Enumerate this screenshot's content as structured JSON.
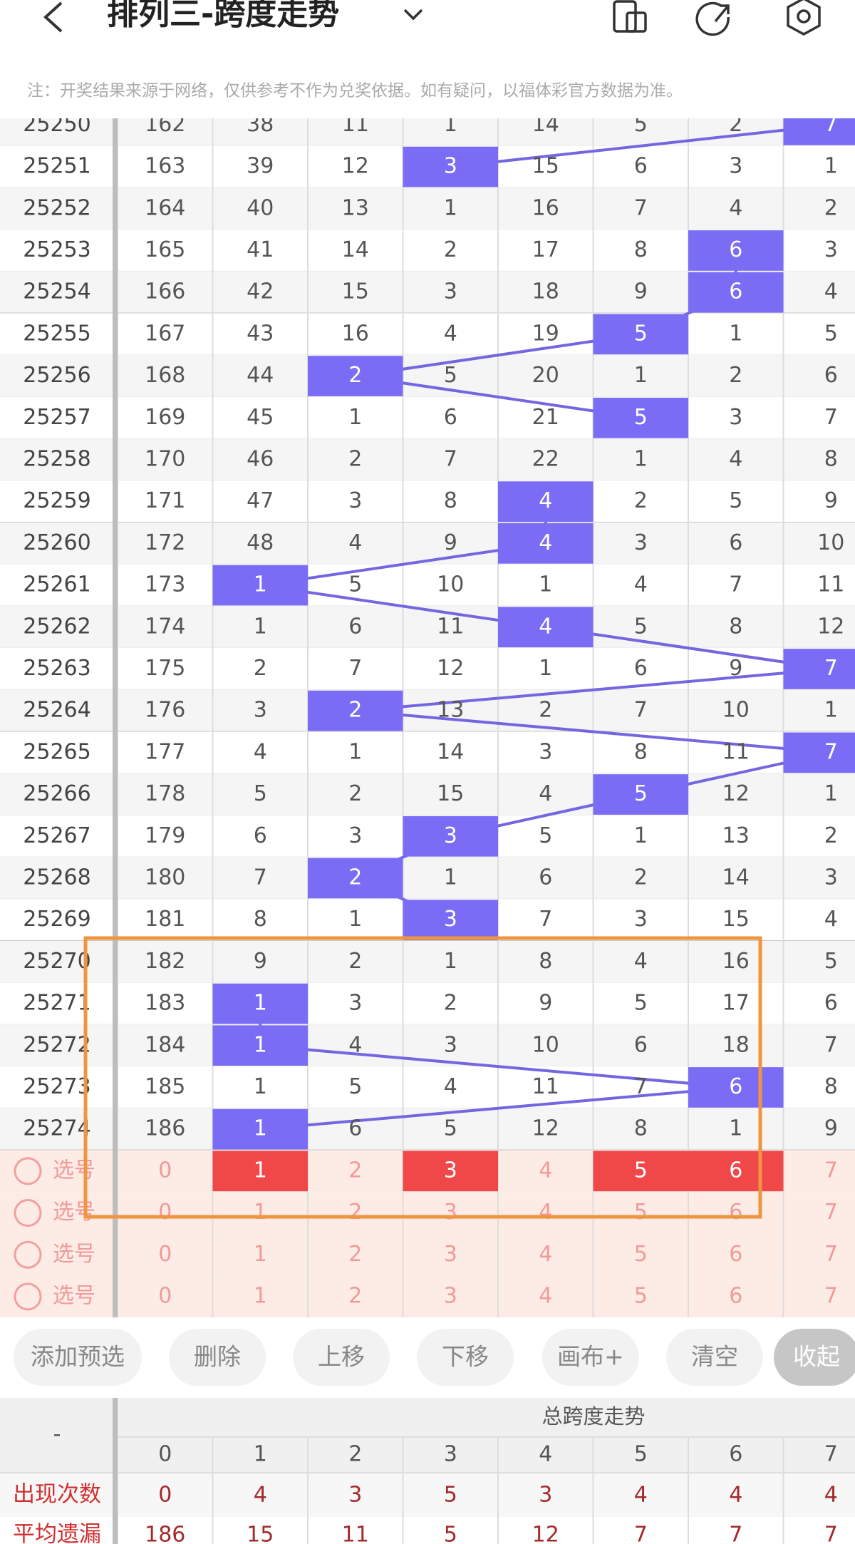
{
  "header": {
    "title": "排列三-跨度走势"
  },
  "note": "注：开奖结果来源于网络，仅供参考不作为兑奖依据。如有疑问，以福体彩官方数据为准。",
  "table": {
    "rows": [
      {
        "period": "25250",
        "cells": [
          162,
          38,
          11,
          1,
          14,
          5,
          2,
          7
        ],
        "highlight": 7
      },
      {
        "period": "25251",
        "cells": [
          163,
          39,
          12,
          3,
          15,
          6,
          3,
          1
        ],
        "highlight": 3
      },
      {
        "period": "25252",
        "cells": [
          164,
          40,
          13,
          1,
          16,
          7,
          4,
          2
        ],
        "highlight": null
      },
      {
        "period": "25253",
        "cells": [
          165,
          41,
          14,
          2,
          17,
          8,
          6,
          3
        ],
        "highlight": 6
      },
      {
        "period": "25254",
        "cells": [
          166,
          42,
          15,
          3,
          18,
          9,
          6,
          4
        ],
        "highlight": 6
      },
      {
        "period": "25255",
        "cells": [
          167,
          43,
          16,
          4,
          19,
          5,
          1,
          5
        ],
        "highlight": 5
      },
      {
        "period": "25256",
        "cells": [
          168,
          44,
          2,
          5,
          20,
          1,
          2,
          6
        ],
        "highlight": 2
      },
      {
        "period": "25257",
        "cells": [
          169,
          45,
          1,
          6,
          21,
          5,
          3,
          7
        ],
        "highlight": 5
      },
      {
        "period": "25258",
        "cells": [
          170,
          46,
          2,
          7,
          22,
          1,
          4,
          8
        ],
        "highlight": null
      },
      {
        "period": "25259",
        "cells": [
          171,
          47,
          3,
          8,
          4,
          2,
          5,
          9
        ],
        "highlight": 4
      },
      {
        "period": "25260",
        "cells": [
          172,
          48,
          4,
          9,
          4,
          3,
          6,
          10
        ],
        "highlight": 4
      },
      {
        "period": "25261",
        "cells": [
          173,
          1,
          5,
          10,
          1,
          4,
          7,
          11
        ],
        "highlight": 1
      },
      {
        "period": "25262",
        "cells": [
          174,
          1,
          6,
          11,
          4,
          5,
          8,
          12
        ],
        "highlight": 4
      },
      {
        "period": "25263",
        "cells": [
          175,
          2,
          7,
          12,
          1,
          6,
          9,
          7
        ],
        "highlight": 7
      },
      {
        "period": "25264",
        "cells": [
          176,
          3,
          2,
          13,
          2,
          7,
          10,
          1
        ],
        "highlight": 2
      },
      {
        "period": "25265",
        "cells": [
          177,
          4,
          1,
          14,
          3,
          8,
          11,
          7
        ],
        "highlight": 7
      },
      {
        "period": "25266",
        "cells": [
          178,
          5,
          2,
          15,
          4,
          5,
          12,
          1
        ],
        "highlight": 5
      },
      {
        "period": "25267",
        "cells": [
          179,
          6,
          3,
          3,
          5,
          1,
          13,
          2
        ],
        "highlight": 3
      },
      {
        "period": "25268",
        "cells": [
          180,
          7,
          2,
          1,
          6,
          2,
          14,
          3
        ],
        "highlight": 2
      },
      {
        "period": "25269",
        "cells": [
          181,
          8,
          1,
          3,
          7,
          3,
          15,
          4
        ],
        "highlight": 3
      },
      {
        "period": "25270",
        "cells": [
          182,
          9,
          2,
          1,
          8,
          4,
          16,
          5
        ],
        "highlight": null
      },
      {
        "period": "25271",
        "cells": [
          183,
          1,
          3,
          2,
          9,
          5,
          17,
          6
        ],
        "highlight": 1
      },
      {
        "period": "25272",
        "cells": [
          184,
          1,
          4,
          3,
          10,
          6,
          18,
          7
        ],
        "highlight": 1
      },
      {
        "period": "25273",
        "cells": [
          185,
          1,
          5,
          4,
          11,
          7,
          6,
          8
        ],
        "highlight": 6
      },
      {
        "period": "25274",
        "cells": [
          186,
          1,
          6,
          5,
          12,
          8,
          1,
          9
        ],
        "highlight": 1
      }
    ]
  },
  "selection": {
    "rows": [
      {
        "label": "选号",
        "cells": [
          0,
          1,
          2,
          3,
          4,
          5,
          6,
          7
        ],
        "selected": [
          1,
          3,
          5,
          6
        ]
      },
      {
        "label": "选号",
        "cells": [
          0,
          1,
          2,
          3,
          4,
          5,
          6,
          7
        ],
        "selected": []
      },
      {
        "label": "选号",
        "cells": [
          0,
          1,
          2,
          3,
          4,
          5,
          6,
          7
        ],
        "selected": []
      },
      {
        "label": "选号",
        "cells": [
          0,
          1,
          2,
          3,
          4,
          5,
          6,
          7
        ],
        "selected": []
      }
    ]
  },
  "buttons": [
    "添加预选",
    "删除",
    "上移",
    "下移",
    "画布+",
    "清空",
    "收起"
  ],
  "stats": {
    "corner": "-",
    "title": "总跨度走势",
    "columns": [
      0,
      1,
      2,
      3,
      4,
      5,
      6,
      7
    ],
    "rows": [
      {
        "label": "出现次数",
        "values": [
          0,
          4,
          3,
          5,
          3,
          4,
          4,
          4
        ]
      },
      {
        "label": "平均遗漏",
        "values": [
          186,
          15,
          11,
          5,
          12,
          7,
          7,
          7
        ]
      }
    ]
  }
}
